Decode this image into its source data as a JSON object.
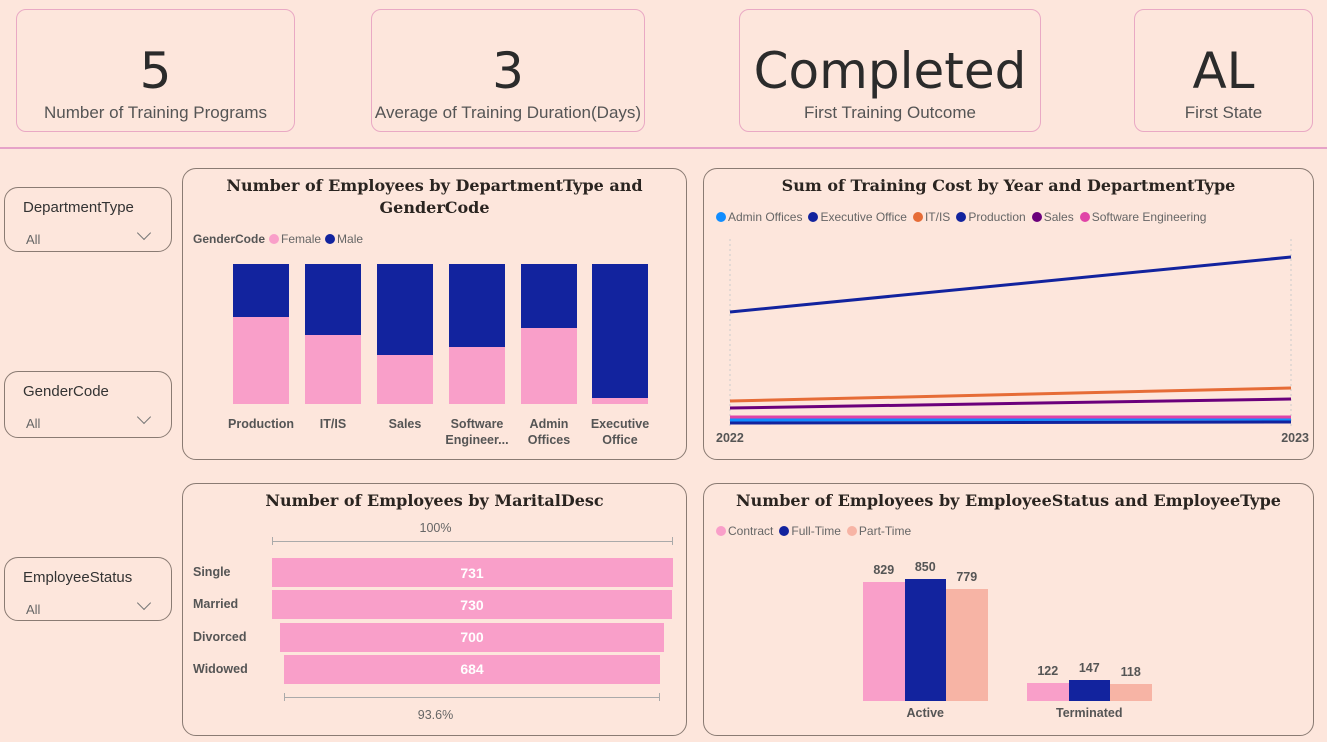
{
  "kpis": [
    {
      "value": "5",
      "label": "Number of Training Programs"
    },
    {
      "value": "3",
      "label": "Average of Training Duration(Days)"
    },
    {
      "value": "Completed",
      "label": "First Training Outcome"
    },
    {
      "value": "AL",
      "label": "First State"
    }
  ],
  "slicers": [
    {
      "title": "DepartmentType",
      "value": "All"
    },
    {
      "title": "GenderCode",
      "value": "All"
    },
    {
      "title": "EmployeeStatus",
      "value": "All"
    }
  ],
  "colors": {
    "female": "#f99fc9",
    "male": "#12239e",
    "parttime": "#f7b4a5",
    "bg": "#fde6dc"
  },
  "chart_data": [
    {
      "type": "bar",
      "stacked": "100%",
      "title": "Number of Employees by DepartmentType and GenderCode",
      "legend_title": "GenderCode",
      "categories": [
        "Production",
        "IT/IS",
        "Sales",
        "Software Engineer...",
        "Admin Offices",
        "Executive Office"
      ],
      "series": [
        {
          "name": "Female",
          "color": "#f99fc9",
          "values": [
            0.62,
            0.49,
            0.35,
            0.41,
            0.54,
            0.04
          ]
        },
        {
          "name": "Male",
          "color": "#12239e",
          "values": [
            0.38,
            0.51,
            0.65,
            0.59,
            0.46,
            0.96
          ]
        }
      ],
      "ylim": [
        0,
        1
      ]
    },
    {
      "type": "line",
      "title": "Sum of Training Cost by Year and DepartmentType",
      "x": [
        "2022",
        "2023"
      ],
      "series": [
        {
          "name": "Admin Offices",
          "color": "#118dff",
          "values": [
            6,
            7
          ]
        },
        {
          "name": "Executive Office",
          "color": "#12239e",
          "values": [
            3,
            4
          ]
        },
        {
          "name": "IT/IS",
          "color": "#e66c37",
          "values": [
            25,
            38
          ]
        },
        {
          "name": "Production",
          "color": "#12239e",
          "values": [
            114,
            169
          ]
        },
        {
          "name": "Sales",
          "color": "#6b007b",
          "values": [
            18,
            27
          ]
        },
        {
          "name": "Software Engineering",
          "color": "#e044a7",
          "values": [
            9,
            9
          ]
        }
      ],
      "ylim": [
        0,
        175
      ]
    },
    {
      "type": "bar",
      "orientation": "funnel",
      "title": "Number of Employees by MaritalDesc",
      "categories": [
        "Single",
        "Married",
        "Divorced",
        "Widowed"
      ],
      "values": [
        731,
        730,
        700,
        684
      ],
      "top_label": "100%",
      "bottom_label": "93.6%",
      "color": "#f99fc9"
    },
    {
      "type": "bar",
      "title": "Number of Employees by EmployeeStatus and EmployeeType",
      "categories": [
        "Active",
        "Terminated"
      ],
      "series": [
        {
          "name": "Contract",
          "color": "#f99fc9",
          "values": [
            829,
            122
          ]
        },
        {
          "name": "Full-Time",
          "color": "#12239e",
          "values": [
            850,
            147
          ]
        },
        {
          "name": "Part-Time",
          "color": "#f7b4a5",
          "values": [
            779,
            118
          ]
        }
      ],
      "ylim": [
        0,
        850
      ]
    }
  ]
}
